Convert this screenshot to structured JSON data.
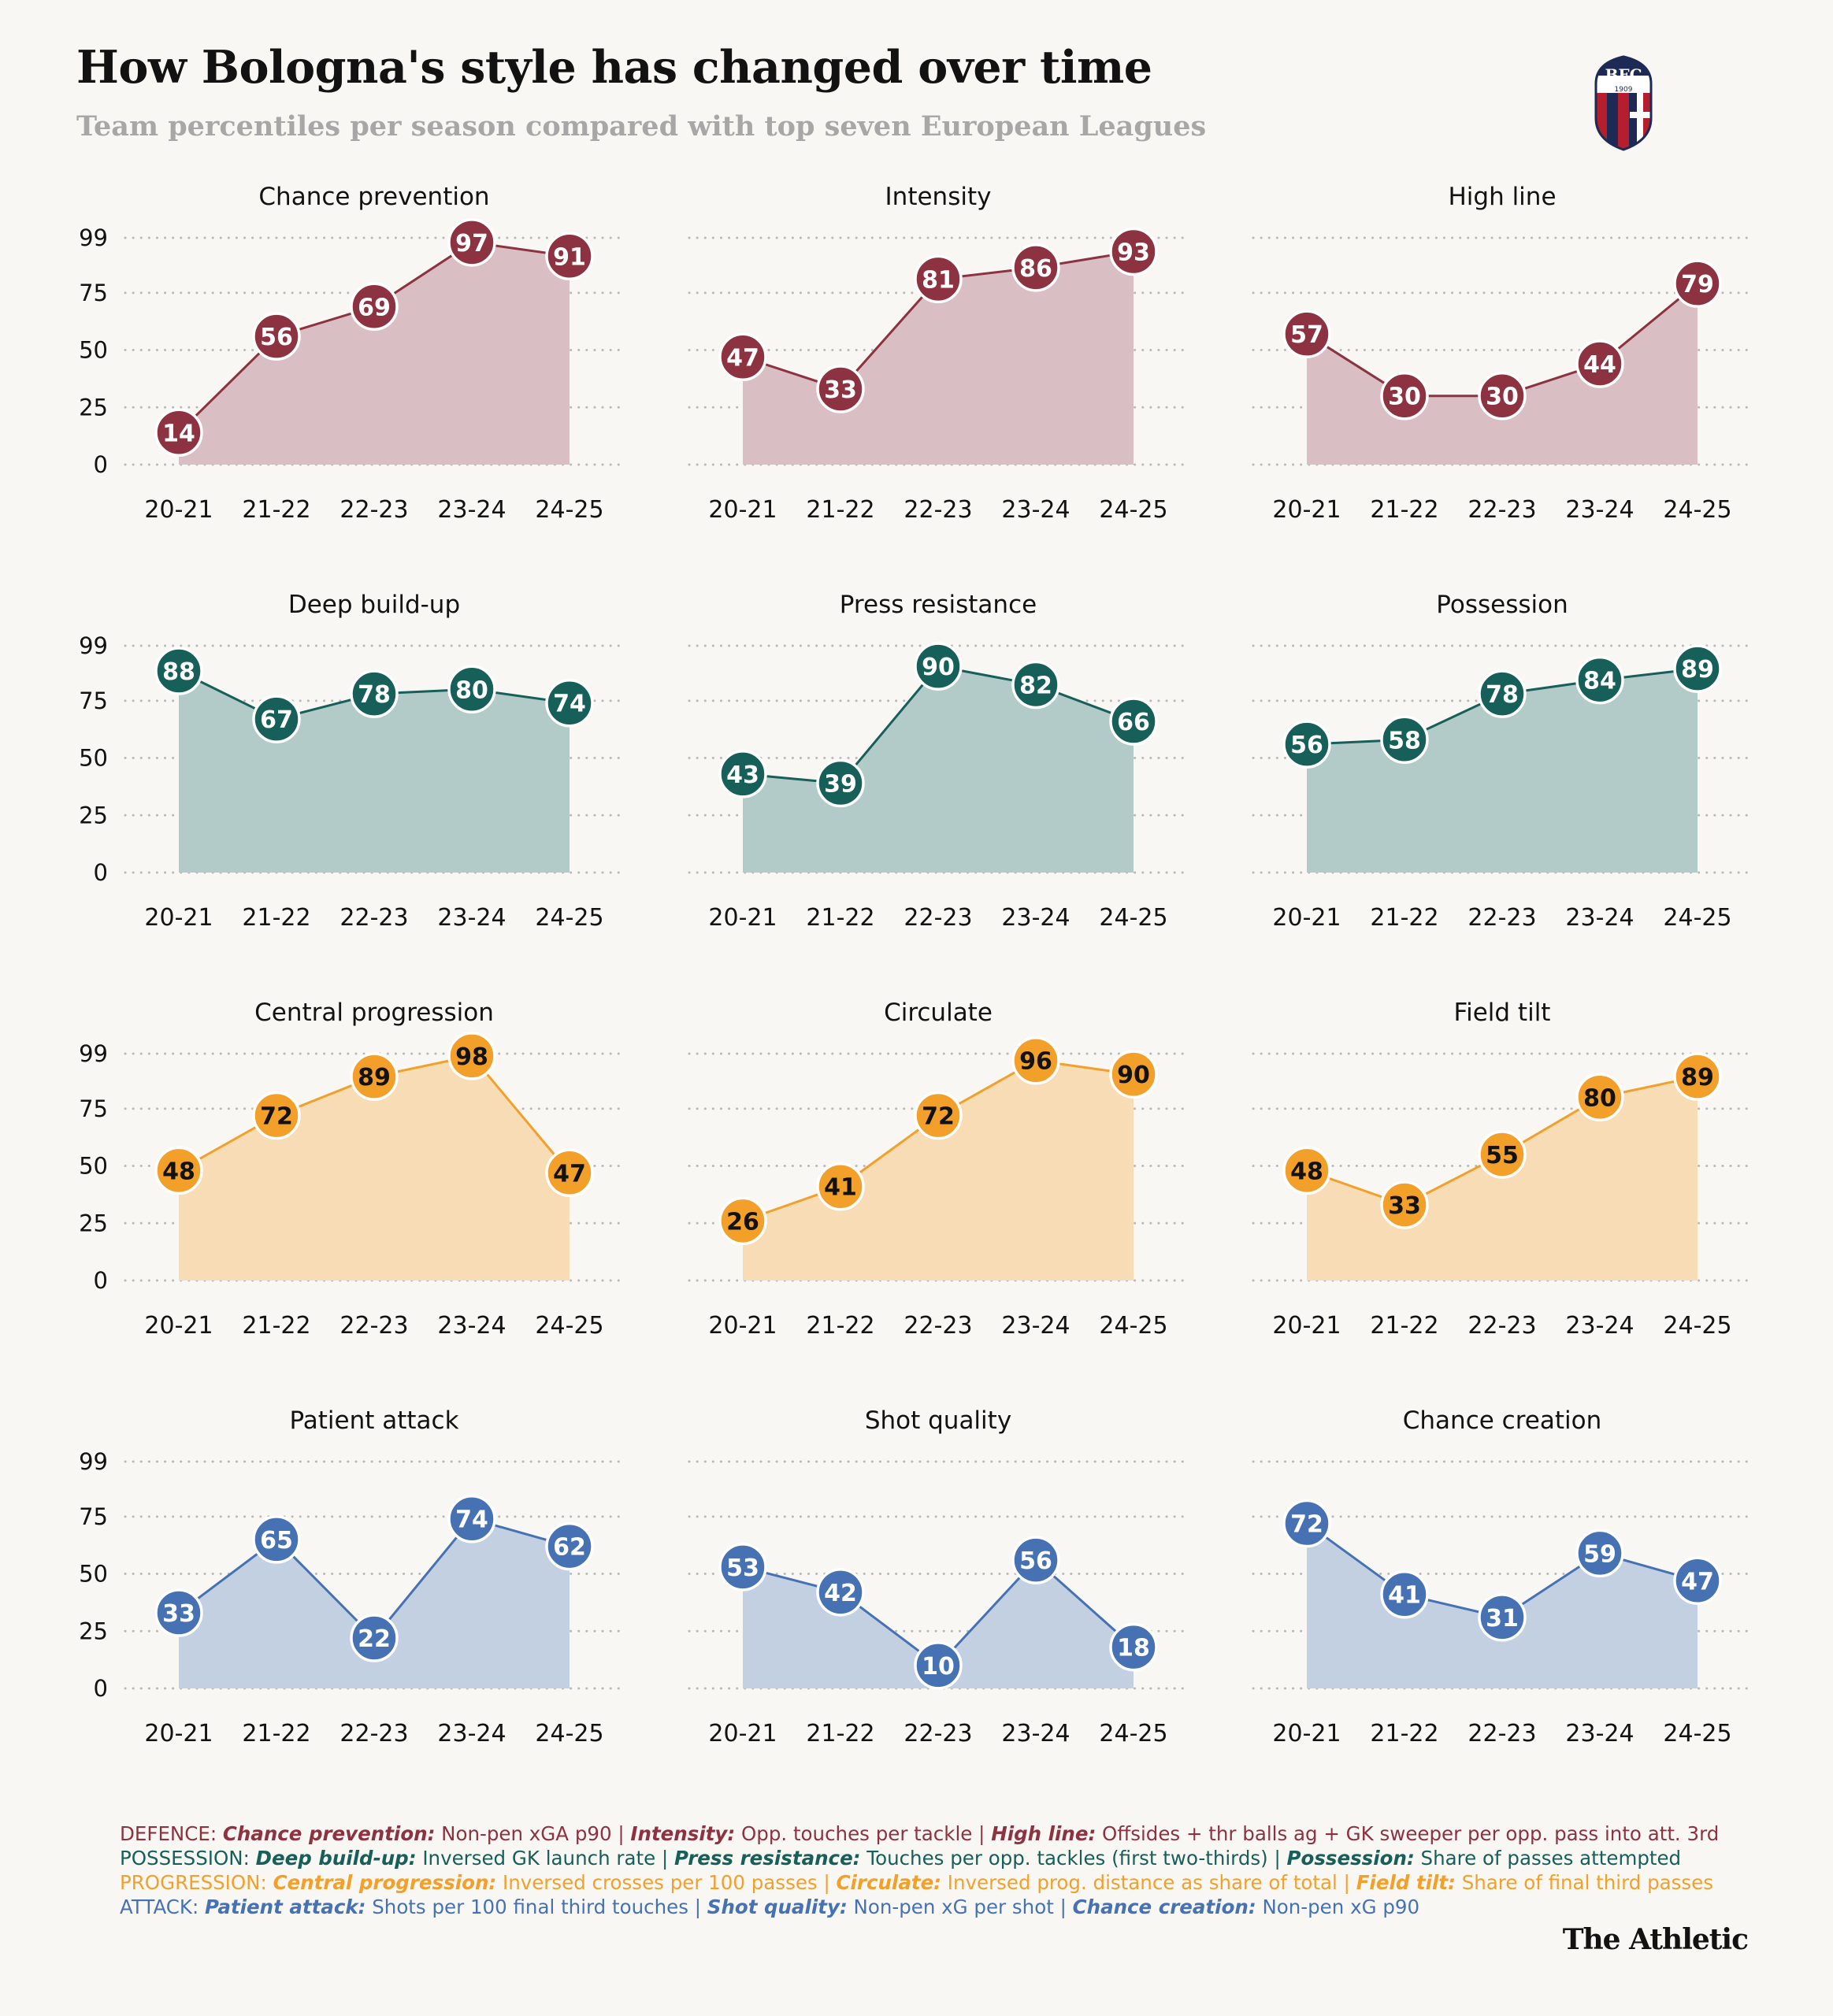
{
  "header": {
    "title": "How Bologna's style has changed over time",
    "subtitle": "Team percentiles per season compared with top seven European Leagues",
    "crest_text": "BFC",
    "crest_year": "1909"
  },
  "colors": {
    "defence": "#8c3240",
    "defence_fill": "#d9bfc3",
    "possession": "#175f59",
    "possession_fill": "#b3cbc8",
    "progression": "#f2a02a",
    "progression_fill": "#f8dcb5",
    "attack": "#4672b4",
    "attack_fill": "#c3d0e2"
  },
  "chart_data": [
    {
      "type": "area",
      "title": "Chance prevention",
      "group": "defence",
      "x": [
        "20-21",
        "21-22",
        "22-23",
        "23-24",
        "24-25"
      ],
      "values": [
        14,
        56,
        69,
        97,
        91
      ],
      "yticks": [
        0,
        25,
        50,
        75,
        99
      ],
      "ylim": [
        0,
        99
      ]
    },
    {
      "type": "area",
      "title": "Intensity",
      "group": "defence",
      "x": [
        "20-21",
        "21-22",
        "22-23",
        "23-24",
        "24-25"
      ],
      "values": [
        47,
        33,
        81,
        86,
        93
      ],
      "yticks": [
        0,
        25,
        50,
        75,
        99
      ],
      "ylim": [
        0,
        99
      ]
    },
    {
      "type": "area",
      "title": "High line",
      "group": "defence",
      "x": [
        "20-21",
        "21-22",
        "22-23",
        "23-24",
        "24-25"
      ],
      "values": [
        57,
        30,
        30,
        44,
        79
      ],
      "yticks": [
        0,
        25,
        50,
        75,
        99
      ],
      "ylim": [
        0,
        99
      ]
    },
    {
      "type": "area",
      "title": "Deep build-up",
      "group": "possession",
      "x": [
        "20-21",
        "21-22",
        "22-23",
        "23-24",
        "24-25"
      ],
      "values": [
        88,
        67,
        78,
        80,
        74
      ],
      "yticks": [
        0,
        25,
        50,
        75,
        99
      ],
      "ylim": [
        0,
        99
      ]
    },
    {
      "type": "area",
      "title": "Press resistance",
      "group": "possession",
      "x": [
        "20-21",
        "21-22",
        "22-23",
        "23-24",
        "24-25"
      ],
      "values": [
        43,
        39,
        90,
        82,
        66
      ],
      "yticks": [
        0,
        25,
        50,
        75,
        99
      ],
      "ylim": [
        0,
        99
      ]
    },
    {
      "type": "area",
      "title": "Possession",
      "group": "possession",
      "x": [
        "20-21",
        "21-22",
        "22-23",
        "23-24",
        "24-25"
      ],
      "values": [
        56,
        58,
        78,
        84,
        89
      ],
      "yticks": [
        0,
        25,
        50,
        75,
        99
      ],
      "ylim": [
        0,
        99
      ]
    },
    {
      "type": "area",
      "title": "Central progression",
      "group": "progression",
      "x": [
        "20-21",
        "21-22",
        "22-23",
        "23-24",
        "24-25"
      ],
      "values": [
        48,
        72,
        89,
        98,
        47
      ],
      "yticks": [
        0,
        25,
        50,
        75,
        99
      ],
      "ylim": [
        0,
        99
      ]
    },
    {
      "type": "area",
      "title": "Circulate",
      "group": "progression",
      "x": [
        "20-21",
        "21-22",
        "22-23",
        "23-24",
        "24-25"
      ],
      "values": [
        26,
        41,
        72,
        96,
        90
      ],
      "yticks": [
        0,
        25,
        50,
        75,
        99
      ],
      "ylim": [
        0,
        99
      ]
    },
    {
      "type": "area",
      "title": "Field tilt",
      "group": "progression",
      "x": [
        "20-21",
        "21-22",
        "22-23",
        "23-24",
        "24-25"
      ],
      "values": [
        48,
        33,
        55,
        80,
        89
      ],
      "yticks": [
        0,
        25,
        50,
        75,
        99
      ],
      "ylim": [
        0,
        99
      ]
    },
    {
      "type": "area",
      "title": "Patient attack",
      "group": "attack",
      "x": [
        "20-21",
        "21-22",
        "22-23",
        "23-24",
        "24-25"
      ],
      "values": [
        33,
        65,
        22,
        74,
        62
      ],
      "yticks": [
        0,
        25,
        50,
        75,
        99
      ],
      "ylim": [
        0,
        99
      ]
    },
    {
      "type": "area",
      "title": "Shot quality",
      "group": "attack",
      "x": [
        "20-21",
        "21-22",
        "22-23",
        "23-24",
        "24-25"
      ],
      "values": [
        53,
        42,
        10,
        56,
        18
      ],
      "yticks": [
        0,
        25,
        50,
        75,
        99
      ],
      "ylim": [
        0,
        99
      ]
    },
    {
      "type": "area",
      "title": "Chance creation",
      "group": "attack",
      "x": [
        "20-21",
        "21-22",
        "22-23",
        "23-24",
        "24-25"
      ],
      "values": [
        72,
        41,
        31,
        59,
        47
      ],
      "yticks": [
        0,
        25,
        50,
        75,
        99
      ],
      "ylim": [
        0,
        99
      ]
    }
  ],
  "footnotes": [
    {
      "group": "defence",
      "parts": [
        {
          "t": "DEFENCE: ",
          "kw": false
        },
        {
          "t": "Chance prevention:",
          "kw": true
        },
        {
          "t": " Non-pen xGA p90 | ",
          "kw": false
        },
        {
          "t": "Intensity:",
          "kw": true
        },
        {
          "t": " Opp. touches per tackle | ",
          "kw": false
        },
        {
          "t": "High line:",
          "kw": true
        },
        {
          "t": " Offsides + thr balls ag + GK sweeper per opp. pass into att. 3rd",
          "kw": false
        }
      ]
    },
    {
      "group": "possession",
      "parts": [
        {
          "t": "POSSESSION: ",
          "kw": false
        },
        {
          "t": "Deep build-up:",
          "kw": true
        },
        {
          "t": " Inversed GK launch rate | ",
          "kw": false
        },
        {
          "t": "Press resistance:",
          "kw": true
        },
        {
          "t": " Touches per opp. tackles (first two-thirds) | ",
          "kw": false
        },
        {
          "t": "Possession:",
          "kw": true
        },
        {
          "t": " Share of passes attempted",
          "kw": false
        }
      ]
    },
    {
      "group": "progression",
      "parts": [
        {
          "t": "PROGRESSION: ",
          "kw": false
        },
        {
          "t": "Central progression:",
          "kw": true
        },
        {
          "t": " Inversed crosses per 100 passes | ",
          "kw": false
        },
        {
          "t": "Circulate:",
          "kw": true
        },
        {
          "t": " Inversed prog. distance as share of total | ",
          "kw": false
        },
        {
          "t": "Field tilt:",
          "kw": true
        },
        {
          "t": " Share of final third passes",
          "kw": false
        }
      ]
    },
    {
      "group": "attack",
      "parts": [
        {
          "t": "ATTACK: ",
          "kw": false
        },
        {
          "t": "Patient attack:",
          "kw": true
        },
        {
          "t": " Shots per 100 final third touches | ",
          "kw": false
        },
        {
          "t": "Shot quality:",
          "kw": true
        },
        {
          "t": " Non-pen xG per shot | ",
          "kw": false
        },
        {
          "t": "Chance creation:",
          "kw": true
        },
        {
          "t": " Non-pen xG p90",
          "kw": false
        }
      ]
    }
  ],
  "brand": "The Athletic"
}
